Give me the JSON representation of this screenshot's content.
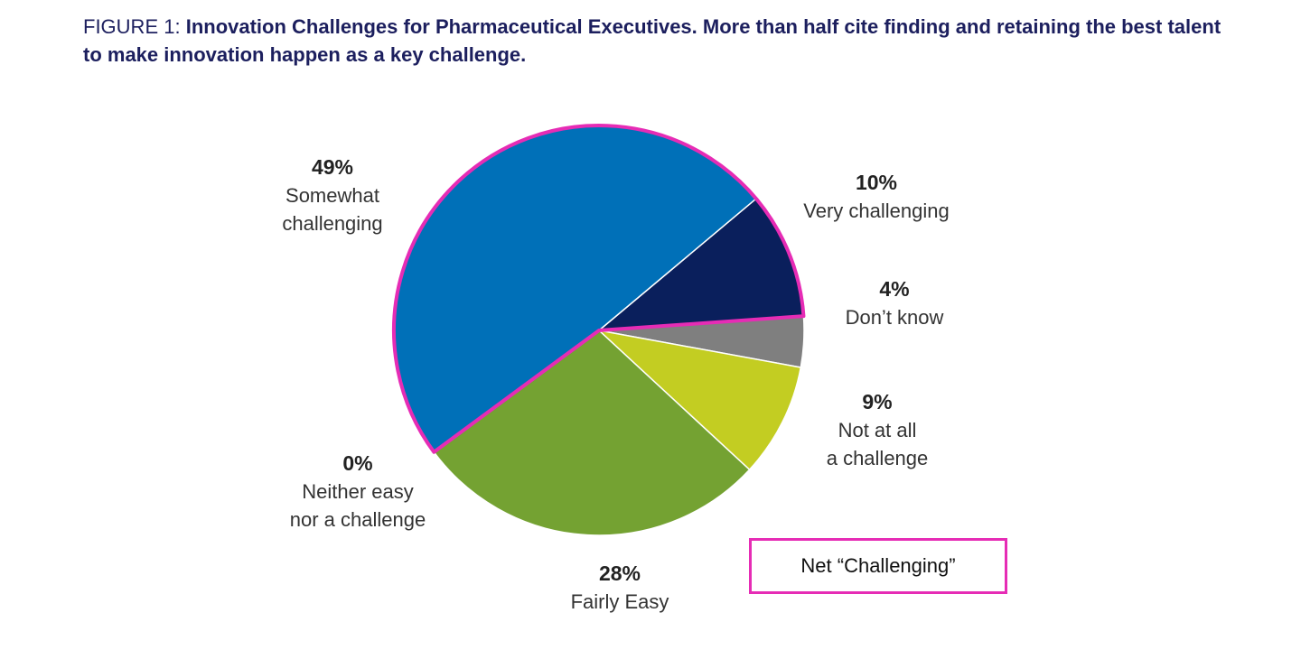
{
  "caption": {
    "figure_label": "FIGURE 1:",
    "title": "Innovation Challenges for Pharmaceutical Executives. More than half cite finding and retaining the best talent to make innovation happen as a key challenge."
  },
  "chart_data": {
    "type": "pie",
    "slices": [
      {
        "label": "Very challenging",
        "value": 10,
        "display": "10%",
        "color": "#0a1f5c",
        "net_challenging": true
      },
      {
        "label": "Don’t know",
        "value": 4,
        "display": "4%",
        "color": "#7f7f7f",
        "net_challenging": false
      },
      {
        "label": "Not at all a challenge",
        "value": 9,
        "display": "9%",
        "color": "#c3cd22",
        "net_challenging": false
      },
      {
        "label": "Fairly Easy",
        "value": 28,
        "display": "28%",
        "color": "#74a232",
        "net_challenging": false
      },
      {
        "label": "Neither easy nor a challenge",
        "value": 0,
        "display": "0%",
        "color": "#ffffff",
        "net_challenging": false
      },
      {
        "label": "Somewhat challenging",
        "value": 49,
        "display": "49%",
        "color": "#0070b8",
        "net_challenging": true
      }
    ],
    "highlight_color": "#e62cb5",
    "legend": {
      "label": "Net “Challenging”"
    }
  },
  "labels": {
    "somewhat": {
      "pct": "49%",
      "line1": "Somewhat",
      "line2": "challenging"
    },
    "very": {
      "pct": "10%",
      "line1": "Very challenging"
    },
    "dontknow": {
      "pct": "4%",
      "line1": "Don’t know"
    },
    "notatall": {
      "pct": "9%",
      "line1": "Not at all",
      "line2": "a challenge"
    },
    "fairly": {
      "pct": "28%",
      "line1": "Fairly Easy"
    },
    "neither": {
      "pct": "0%",
      "line1": "Neither easy",
      "line2": "nor a challenge"
    }
  }
}
